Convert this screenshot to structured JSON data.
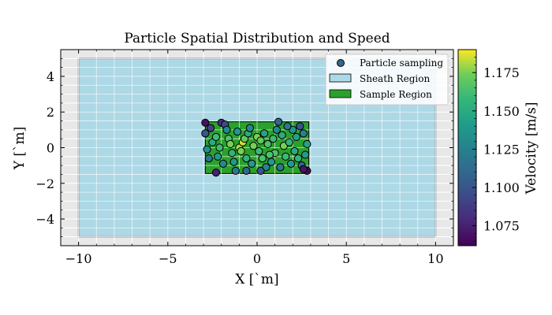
{
  "chart_data": {
    "type": "scatter",
    "title": "Particle Spatial Distribution and Speed",
    "xlabel": "X [`m]",
    "ylabel": "Y [`m]",
    "xlim": [
      -11,
      11
    ],
    "ylim": [
      -5.5,
      5.5
    ],
    "xticks": [
      -10,
      -5,
      0,
      5,
      10
    ],
    "yticks": [
      -4,
      -2,
      0,
      2,
      4
    ],
    "xtick_labels": [
      "−10",
      "−5",
      "0",
      "5",
      "10"
    ],
    "ytick_labels": [
      "−4",
      "−2",
      "0",
      "2",
      "4"
    ],
    "grid": true,
    "legend_position": "top-right",
    "legend": {
      "particles": "Particle sampling",
      "sheath": "Sheath Region",
      "sample": "Sample Region"
    },
    "regions": {
      "sheath": {
        "x": [
          -10,
          10
        ],
        "y": [
          -5,
          5
        ],
        "color": "#add8e6"
      },
      "sample": {
        "x": [
          -2.9,
          2.9
        ],
        "y": [
          -1.45,
          1.45
        ],
        "color": "#2ca02c"
      }
    },
    "colorbar": {
      "label": "Velocity [m/s]",
      "range": [
        1.062,
        1.19
      ],
      "ticks": [
        1.075,
        1.1,
        1.125,
        1.15,
        1.175
      ],
      "tick_labels": [
        "1.075",
        "1.100",
        "1.125",
        "1.150",
        "1.175"
      ],
      "colormap": "viridis"
    },
    "series": [
      {
        "name": "Particle sampling",
        "points": [
          {
            "x": -2.9,
            "y": 1.4,
            "v": 1.068
          },
          {
            "x": -2.9,
            "y": 0.8,
            "v": 1.1
          },
          {
            "x": -2.8,
            "y": -0.1,
            "v": 1.135
          },
          {
            "x": -2.5,
            "y": 0.3,
            "v": 1.15
          },
          {
            "x": -2.3,
            "y": 0.6,
            "v": 1.16
          },
          {
            "x": -2.2,
            "y": -0.5,
            "v": 1.14
          },
          {
            "x": -2.3,
            "y": -1.4,
            "v": 1.075
          },
          {
            "x": -2.0,
            "y": 1.4,
            "v": 1.08
          },
          {
            "x": -1.8,
            "y": 1.3,
            "v": 1.095
          },
          {
            "x": -1.7,
            "y": 1.0,
            "v": 1.13
          },
          {
            "x": -1.6,
            "y": 0.5,
            "v": 1.165
          },
          {
            "x": -1.5,
            "y": 0.2,
            "v": 1.175
          },
          {
            "x": -1.4,
            "y": -0.3,
            "v": 1.155
          },
          {
            "x": -1.3,
            "y": -0.8,
            "v": 1.14
          },
          {
            "x": -1.2,
            "y": -1.3,
            "v": 1.12
          },
          {
            "x": -1.0,
            "y": 0.0,
            "v": 1.18
          },
          {
            "x": -0.8,
            "y": 0.3,
            "v": 1.185
          },
          {
            "x": -0.9,
            "y": -0.2,
            "v": 1.175
          },
          {
            "x": -0.7,
            "y": 0.5,
            "v": 1.17
          },
          {
            "x": -0.6,
            "y": -0.6,
            "v": 1.155
          },
          {
            "x": -0.5,
            "y": 0.8,
            "v": 1.15
          },
          {
            "x": -0.6,
            "y": -1.3,
            "v": 1.11
          },
          {
            "x": -0.3,
            "y": -0.9,
            "v": 1.14
          },
          {
            "x": -0.2,
            "y": 0.1,
            "v": 1.175
          },
          {
            "x": 0.0,
            "y": 0.6,
            "v": 1.175
          },
          {
            "x": 0.2,
            "y": 0.4,
            "v": 1.17
          },
          {
            "x": 0.1,
            "y": -0.2,
            "v": 1.16
          },
          {
            "x": 0.3,
            "y": -0.6,
            "v": 1.165
          },
          {
            "x": 0.4,
            "y": 0.8,
            "v": 1.145
          },
          {
            "x": 0.5,
            "y": -1.1,
            "v": 1.13
          },
          {
            "x": 0.6,
            "y": 0.2,
            "v": 1.165
          },
          {
            "x": 0.8,
            "y": -0.8,
            "v": 1.14
          },
          {
            "x": 0.9,
            "y": 0.5,
            "v": 1.16
          },
          {
            "x": 1.0,
            "y": -0.3,
            "v": 1.165
          },
          {
            "x": 1.1,
            "y": 1.0,
            "v": 1.13
          },
          {
            "x": 1.2,
            "y": 1.45,
            "v": 1.11
          },
          {
            "x": 1.3,
            "y": -1.1,
            "v": 1.12
          },
          {
            "x": 1.4,
            "y": 0.7,
            "v": 1.15
          },
          {
            "x": 1.5,
            "y": 0.1,
            "v": 1.175
          },
          {
            "x": 1.6,
            "y": -0.5,
            "v": 1.16
          },
          {
            "x": 1.8,
            "y": 0.3,
            "v": 1.155
          },
          {
            "x": 1.9,
            "y": -0.9,
            "v": 1.14
          },
          {
            "x": 2.0,
            "y": 1.0,
            "v": 1.14
          },
          {
            "x": 2.1,
            "y": -0.2,
            "v": 1.15
          },
          {
            "x": 2.2,
            "y": 0.6,
            "v": 1.145
          },
          {
            "x": 2.3,
            "y": -0.6,
            "v": 1.155
          },
          {
            "x": 2.4,
            "y": 1.2,
            "v": 1.1
          },
          {
            "x": 2.5,
            "y": -1.0,
            "v": 1.11
          },
          {
            "x": 2.6,
            "y": 0.8,
            "v": 1.125
          },
          {
            "x": 2.7,
            "y": -0.4,
            "v": 1.14
          },
          {
            "x": 2.8,
            "y": 0.2,
            "v": 1.145
          },
          {
            "x": 2.8,
            "y": -1.3,
            "v": 1.065
          },
          {
            "x": 2.6,
            "y": -1.2,
            "v": 1.07
          },
          {
            "x": -2.6,
            "y": 1.1,
            "v": 1.09
          },
          {
            "x": -2.7,
            "y": -0.6,
            "v": 1.12
          },
          {
            "x": -1.9,
            "y": -0.9,
            "v": 1.13
          },
          {
            "x": -2.1,
            "y": 0.0,
            "v": 1.16
          },
          {
            "x": -1.1,
            "y": 0.9,
            "v": 1.14
          },
          {
            "x": 0.7,
            "y": -0.4,
            "v": 1.165
          },
          {
            "x": 1.7,
            "y": 1.2,
            "v": 1.12
          },
          {
            "x": -0.4,
            "y": 1.1,
            "v": 1.13
          },
          {
            "x": 0.2,
            "y": -1.3,
            "v": 1.1
          }
        ]
      }
    ]
  }
}
